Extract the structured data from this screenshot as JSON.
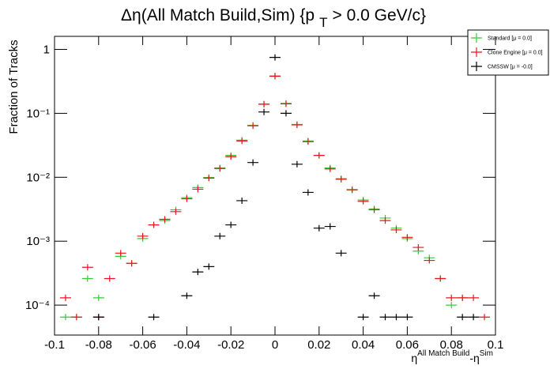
{
  "chart_data": {
    "type": "errorbar",
    "log_y": true,
    "title": "Δη(All Match Build,Sim) {p",
    "title_subscript": "T",
    "title_end": "> 0.0 GeV/c}",
    "y_label": "Fraction of Tracks",
    "x_label": "η",
    "x_label_sup": "All Match Build",
    "x_label_mid": "-η",
    "x_label_sup2": "Sim",
    "x": [
      -0.095,
      -0.09,
      -0.085,
      -0.08,
      -0.075,
      -0.07,
      -0.065,
      -0.06,
      -0.055,
      -0.05,
      -0.045,
      -0.04,
      -0.035,
      -0.03,
      -0.025,
      -0.02,
      -0.015,
      -0.01,
      -0.005,
      0,
      0.005,
      0.01,
      0.015,
      0.02,
      0.025,
      0.03,
      0.035,
      0.04,
      0.045,
      0.05,
      0.055,
      0.06,
      0.065,
      0.07,
      0.075,
      0.08,
      0.085,
      0.09,
      0.095
    ],
    "series": [
      {
        "name": "Standard  [μ = 0.0]",
        "color": "#33cc33",
        "values": [
          6.5e-05,
          6.5e-05,
          0.00026,
          0.00013,
          null,
          0.00058,
          0.00045,
          0.0011,
          0.0018,
          0.0021,
          0.0031,
          0.0048,
          0.0069,
          0.0099,
          0.014,
          0.022,
          0.038,
          0.065,
          0.14,
          0.385,
          0.143,
          0.067,
          0.037,
          0.022,
          0.014,
          0.0095,
          0.0063,
          0.0044,
          0.0032,
          0.0023,
          0.0016,
          0.0011,
          0.0007,
          0.00055,
          0.00026,
          0.0001,
          0.00013,
          null,
          null
        ]
      },
      {
        "name": "Clone Engine  [μ = 0.0]",
        "color": "#e8141e",
        "values": [
          0.00013,
          6.5e-05,
          0.00039,
          6.5e-05,
          0.00026,
          0.00065,
          0.00045,
          0.0012,
          0.0018,
          0.0022,
          0.0029,
          0.0046,
          0.0065,
          0.0097,
          0.0137,
          0.021,
          0.037,
          0.064,
          0.139,
          0.38,
          0.141,
          0.066,
          0.036,
          0.022,
          0.0135,
          0.0093,
          0.0064,
          0.0042,
          0.0031,
          0.0021,
          0.0015,
          0.00115,
          0.0008,
          0.0005,
          0.00026,
          0.00013,
          0.00013,
          0.00013,
          6.5e-05
        ]
      },
      {
        "name": "CMSSW  [μ = -0.0]",
        "color": "#000000",
        "values": [
          null,
          null,
          null,
          6.5e-05,
          null,
          null,
          null,
          null,
          6.5e-05,
          null,
          null,
          0.00014,
          0.00033,
          0.0004,
          0.0012,
          0.0018,
          0.0043,
          0.017,
          0.105,
          0.75,
          0.1,
          0.016,
          0.0058,
          0.0016,
          0.0017,
          0.00065,
          null,
          6.5e-05,
          0.00014,
          6.5e-05,
          6.5e-05,
          6.5e-05,
          null,
          null,
          null,
          null,
          6.5e-05,
          6.5e-05,
          null
        ]
      }
    ],
    "bin_width": 0.005,
    "xlim": [
      -0.1,
      0.1
    ],
    "xticks": [
      -0.1,
      -0.08,
      -0.06,
      -0.04,
      -0.02,
      0,
      0.02,
      0.04,
      0.06,
      0.08,
      0.1
    ],
    "ylim": [
      3.4e-05,
      1.6
    ],
    "yticks": [
      {
        "value": 0.0001,
        "label": "10⁻⁴"
      },
      {
        "value": 0.001,
        "label": "10⁻³"
      },
      {
        "value": 0.01,
        "label": "10⁻²"
      },
      {
        "value": 0.1,
        "label": "10⁻¹"
      },
      1
    ],
    "legend": "top-right"
  }
}
